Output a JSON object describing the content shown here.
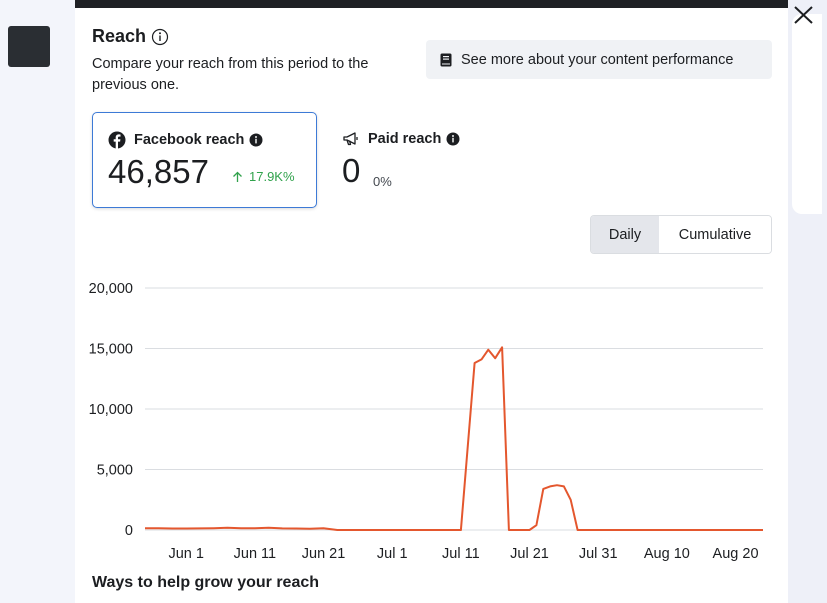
{
  "panel": {
    "title": "Reach",
    "subtitle": "Compare your reach from this period to the previous one.",
    "performance_button": "See more about your content performance",
    "footer_title": "Ways to help grow your reach"
  },
  "metrics": {
    "facebook": {
      "label": "Facebook reach",
      "value": "46,857",
      "delta": "17.9K%"
    },
    "paid": {
      "label": "Paid reach",
      "value": "0",
      "delta": "0%"
    }
  },
  "toggle": {
    "daily": "Daily",
    "cumulative": "Cumulative",
    "selected": "Daily"
  },
  "colors": {
    "line": "#e4572e",
    "accent_blue": "#3d7ad6",
    "positive_green": "#31a24c",
    "grid": "#dadde1"
  },
  "chart_data": {
    "type": "line",
    "title": "",
    "xlabel": "",
    "ylabel": "",
    "ylim": [
      0,
      20000
    ],
    "y_ticks": [
      0,
      5000,
      10000,
      15000,
      20000
    ],
    "y_tick_labels": [
      "0",
      "5,000",
      "10,000",
      "15,000",
      "20,000"
    ],
    "x_ticks": [
      "Jun 1",
      "Jun 11",
      "Jun 21",
      "Jul 1",
      "Jul 11",
      "Jul 21",
      "Jul 31",
      "Aug 10",
      "Aug 20"
    ],
    "grid": true,
    "legend": "none",
    "series": [
      {
        "x": [
          "May 26",
          "May 28",
          "May 30",
          "Jun 1",
          "Jun 3",
          "Jun 5",
          "Jun 7",
          "Jun 9",
          "Jun 11",
          "Jun 13",
          "Jun 15",
          "Jun 17",
          "Jun 19",
          "Jun 21",
          "Jun 23",
          "Jun 25",
          "Jun 27",
          "Jun 29",
          "Jul 1",
          "Jul 3",
          "Jul 5",
          "Jul 7",
          "Jul 9",
          "Jul 11",
          "Jul 13",
          "Jul 14",
          "Jul 15",
          "Jul 16",
          "Jul 17",
          "Jul 18",
          "Jul 20",
          "Jul 21",
          "Jul 22",
          "Jul 23",
          "Jul 24",
          "Jul 25",
          "Jul 26",
          "Jul 27",
          "Jul 28",
          "Jul 29",
          "Jul 31",
          "Aug 5",
          "Aug 10",
          "Aug 15",
          "Aug 20",
          "Aug 24"
        ],
        "values": [
          150,
          150,
          120,
          120,
          130,
          150,
          180,
          150,
          150,
          180,
          130,
          120,
          100,
          150,
          0,
          0,
          0,
          0,
          0,
          0,
          0,
          0,
          0,
          0,
          13800,
          14100,
          14900,
          14200,
          15100,
          0,
          0,
          0,
          400,
          3400,
          3600,
          3700,
          3600,
          2500,
          0,
          0,
          0,
          0,
          0,
          0,
          0,
          0
        ]
      }
    ]
  }
}
